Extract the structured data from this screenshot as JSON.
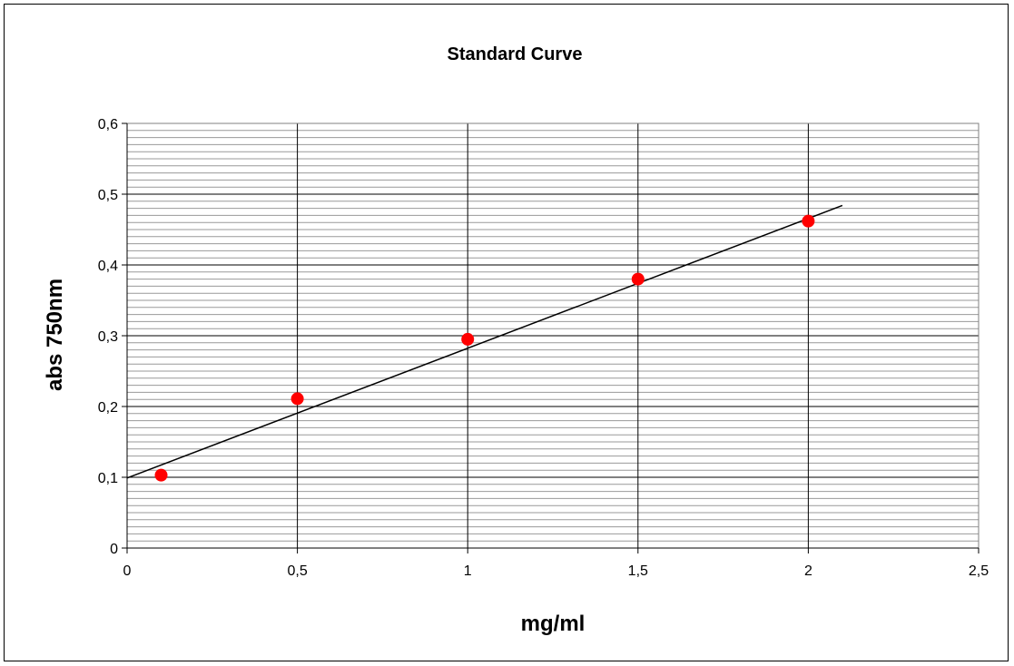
{
  "chart_data": {
    "type": "scatter",
    "title": "Standard Curve",
    "xlabel": "mg/ml",
    "ylabel": "abs 750nm",
    "xlim": [
      0,
      2.5
    ],
    "ylim": [
      0,
      0.6
    ],
    "x_ticks": [
      "0",
      "0,5",
      "1",
      "1,5",
      "2",
      "2,5"
    ],
    "y_ticks": [
      "0",
      "0,1",
      "0,2",
      "0,3",
      "0,4",
      "0,5",
      "0,6"
    ],
    "grid": true,
    "legend": "none",
    "points": [
      {
        "x": 0.1,
        "y": 0.103
      },
      {
        "x": 0.5,
        "y": 0.211
      },
      {
        "x": 1.0,
        "y": 0.295
      },
      {
        "x": 1.5,
        "y": 0.38
      },
      {
        "x": 2.0,
        "y": 0.462
      }
    ],
    "trendline": {
      "x": [
        0,
        2.1
      ],
      "y": [
        0.099,
        0.484
      ]
    },
    "colors": {
      "points": "#ff0000",
      "line": "#000000",
      "minor_grid": "#999999",
      "major_grid": "#000000"
    }
  }
}
